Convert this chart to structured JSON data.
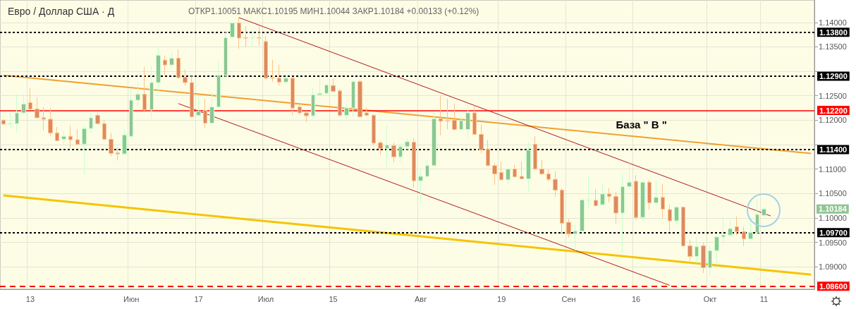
{
  "chart_data": {
    "type": "candlestick",
    "title": "Евро / Доллар США · Д",
    "subtitle": "ОТКР1.10051 МАКС1.10195 МИН1.10044 ЗАКР1.10184 +0.00133 (+0.12%)",
    "categories": [
      null,
      null,
      null,
      null,
      "13",
      null,
      null,
      null,
      null,
      null,
      null,
      null,
      null,
      null,
      null,
      null,
      null,
      null,
      null,
      "Июн",
      null,
      null,
      null,
      null,
      null,
      null,
      null,
      null,
      null,
      "17",
      null,
      null,
      null,
      null,
      null,
      null,
      null,
      null,
      null,
      "Июл",
      null,
      null,
      null,
      null,
      null,
      null,
      null,
      null,
      null,
      "15",
      null,
      null,
      null,
      null,
      null,
      null,
      null,
      null,
      null,
      null,
      null,
      null,
      "Авг",
      null,
      null,
      null,
      null,
      null,
      null,
      null,
      null,
      null,
      null,
      null,
      "19",
      null,
      null,
      null,
      null,
      null,
      null,
      null,
      null,
      null,
      "Сен",
      null,
      null,
      null,
      null,
      null,
      null,
      null,
      null,
      null,
      "16",
      null,
      null,
      null,
      null,
      null,
      null,
      null,
      null,
      null,
      null,
      "Окт",
      null,
      null,
      null,
      null,
      null,
      null,
      null,
      "11",
      null,
      null,
      null,
      null,
      null,
      null,
      null
    ],
    "colors": [
      "#dc8a62",
      "#8fc493",
      "#8fc493",
      "#8fc493",
      "#dc8a62",
      "#dc8a62",
      "#dc8a62",
      "#dc8a62",
      "#dc8a62",
      "#8fc493",
      "#dc8a62",
      "#dc8a62",
      "#8fc493",
      "#8fc493",
      "#dc8a62",
      "#dc8a62",
      "#dc8a62",
      "#dc8a62",
      "#8fc493",
      "#8fc493",
      "#8fc493",
      "#dc8a62",
      "#8fc493",
      "#8fc493",
      "#dc8a62",
      "#8fc493",
      "#dc8a62",
      "#dc8a62",
      "#dc8a62",
      "#8fc493",
      "#dc8a62",
      "#8fc493",
      "#8fc493",
      "#8fc493",
      "#8fc493",
      "#dc8a62",
      "#dc8a62",
      "#8fc493",
      "#dc8a62",
      "#dc8a62",
      "#dc8a62",
      "#dc8a62",
      "#8fc493",
      "#dc8a62",
      "#dc8a62",
      "#dc8a62",
      "#8fc493",
      "#8fc493",
      "#8fc493",
      "#dc8a62",
      "#dc8a62",
      "#8fc493",
      "#8fc493",
      "#dc8a62",
      "#dc8a62",
      "#dc8a62",
      "#dc8a62",
      "#8fc493",
      "#dc8a62",
      "#8fc493",
      "#8fc493",
      "#dc8a62",
      "#8fc493",
      "#8fc493",
      "#8fc493",
      "#dc8a62",
      "#dc8a62",
      "#dc8a62",
      "#8fc493",
      "#8fc493",
      "#dc8a62",
      "#dc8a62",
      "#dc8a62",
      "#dc8a62",
      "#dc8a62",
      "#8fc493",
      "#dc8a62",
      "#dc8a62",
      "#8fc493",
      "#dc8a62",
      "#dc8a62",
      "#dc8a62",
      "#dc8a62",
      "#dc8a62",
      "#dc8a62",
      "#8fc493",
      "#8fc493",
      "#8fc493",
      "#dc8a62",
      "#8fc493",
      "#dc8a62",
      "#dc8a62",
      "#8fc493",
      "#8fc493",
      "#dc8a62",
      "#8fc493",
      "#dc8a62",
      "#8fc493",
      "#dc8a62",
      "#dc8a62",
      "#8fc493",
      "#dc8a62",
      "#dc8a62",
      "#8fc493",
      "#dc8a62",
      "#8fc493",
      "#8fc493",
      "#8fc493",
      "#8fc493",
      "#dc8a62",
      "#dc8a62",
      "#8fc493",
      "#8fc493",
      "#8fc493",
      null,
      null,
      null,
      null,
      null,
      null,
      null
    ],
    "ohlc": [
      [
        1.12,
        1.1202,
        1.119,
        1.1192
      ],
      [
        1.1192,
        1.1215,
        1.1185,
        1.1193
      ],
      [
        1.1193,
        1.1253,
        1.1175,
        1.1215
      ],
      [
        1.1215,
        1.1256,
        1.1212,
        1.1233
      ],
      [
        1.1236,
        1.1266,
        1.1221,
        1.1223
      ],
      [
        1.1223,
        1.1246,
        1.1203,
        1.1205
      ],
      [
        1.1205,
        1.1227,
        1.1179,
        1.1202
      ],
      [
        1.1202,
        1.1225,
        1.1168,
        1.1174
      ],
      [
        1.1174,
        1.1186,
        1.1157,
        1.1158
      ],
      [
        1.1161,
        1.1177,
        1.1151,
        1.1167
      ],
      [
        1.1167,
        1.1189,
        1.1143,
        1.116
      ],
      [
        1.116,
        1.1182,
        1.115,
        1.1151
      ],
      [
        1.1151,
        1.1189,
        1.1089,
        1.1183
      ],
      [
        1.1183,
        1.1214,
        1.1174,
        1.1205
      ],
      [
        1.121,
        1.1216,
        1.1191,
        1.1193
      ],
      [
        1.1193,
        1.1201,
        1.1159,
        1.1161
      ],
      [
        1.1161,
        1.1174,
        1.1126,
        1.1132
      ],
      [
        1.1133,
        1.1144,
        1.1118,
        1.1131
      ],
      [
        1.1131,
        1.1181,
        1.1129,
        1.117
      ],
      [
        1.1167,
        1.1263,
        1.1162,
        1.1241
      ],
      [
        1.1241,
        1.1279,
        1.1229,
        1.1253
      ],
      [
        1.1253,
        1.1309,
        1.1219,
        1.1221
      ],
      [
        1.1221,
        1.1311,
        1.1203,
        1.1277
      ],
      [
        1.1277,
        1.135,
        1.1254,
        1.1333
      ],
      [
        1.1323,
        1.1332,
        1.1293,
        1.1313
      ],
      [
        1.1313,
        1.1339,
        1.1304,
        1.1327
      ],
      [
        1.1327,
        1.1345,
        1.1285,
        1.1287
      ],
      [
        1.1288,
        1.1304,
        1.1271,
        1.1277
      ],
      [
        1.1277,
        1.1291,
        1.1205,
        1.1207
      ],
      [
        1.121,
        1.1249,
        1.1206,
        1.1218
      ],
      [
        1.122,
        1.1244,
        1.1184,
        1.1194
      ],
      [
        1.1194,
        1.1256,
        1.1191,
        1.1227
      ],
      [
        1.1227,
        1.1319,
        1.1225,
        1.1292
      ],
      [
        1.1292,
        1.1381,
        1.1285,
        1.1369
      ],
      [
        1.137,
        1.14,
        1.1368,
        1.1399
      ],
      [
        1.1399,
        1.141,
        1.1346,
        1.1368
      ],
      [
        1.1369,
        1.1393,
        1.135,
        1.1368
      ],
      [
        1.1368,
        1.1384,
        1.135,
        1.1369
      ],
      [
        1.1369,
        1.1393,
        1.1352,
        1.1368
      ],
      [
        1.1361,
        1.1372,
        1.1284,
        1.1286
      ],
      [
        1.1287,
        1.1324,
        1.1278,
        1.1286
      ],
      [
        1.1286,
        1.1314,
        1.1271,
        1.1278
      ],
      [
        1.1278,
        1.1293,
        1.1275,
        1.1286
      ],
      [
        1.1286,
        1.1288,
        1.121,
        1.1225
      ],
      [
        1.1227,
        1.1234,
        1.121,
        1.1215
      ],
      [
        1.1215,
        1.1219,
        1.1196,
        1.1209
      ],
      [
        1.1209,
        1.1266,
        1.1204,
        1.1252
      ],
      [
        1.1252,
        1.1287,
        1.1251,
        1.1255
      ],
      [
        1.1255,
        1.1275,
        1.1251,
        1.1272
      ],
      [
        1.1271,
        1.1285,
        1.1257,
        1.1259
      ],
      [
        1.126,
        1.1264,
        1.1208,
        1.121
      ],
      [
        1.121,
        1.1235,
        1.1202,
        1.1225
      ],
      [
        1.1225,
        1.1283,
        1.1207,
        1.1279
      ],
      [
        1.1279,
        1.1283,
        1.1206,
        1.1207
      ],
      [
        1.1215,
        1.1226,
        1.1209,
        1.121
      ],
      [
        1.121,
        1.1212,
        1.1148,
        1.1153
      ],
      [
        1.1154,
        1.1157,
        1.1129,
        1.1142
      ],
      [
        1.1142,
        1.1189,
        1.1103,
        1.1149
      ],
      [
        1.1148,
        1.1154,
        1.1114,
        1.1125
      ],
      [
        1.1125,
        1.1154,
        1.1114,
        1.1146
      ],
      [
        1.1146,
        1.1163,
        1.1139,
        1.1156
      ],
      [
        1.1155,
        1.1163,
        1.1062,
        1.1076
      ],
      [
        1.1076,
        1.1098,
        1.103,
        1.1085
      ],
      [
        1.1085,
        1.1119,
        1.1084,
        1.1107
      ],
      [
        1.1107,
        1.1215,
        1.1105,
        1.1203
      ],
      [
        1.1203,
        1.1251,
        1.1169,
        1.1198
      ],
      [
        1.1199,
        1.1244,
        1.1181,
        1.1198
      ],
      [
        1.12,
        1.1234,
        1.1179,
        1.1181
      ],
      [
        1.1181,
        1.1206,
        1.118,
        1.1199
      ],
      [
        1.1181,
        1.1232,
        1.1165,
        1.1215
      ],
      [
        1.1215,
        1.123,
        1.117,
        1.1171
      ],
      [
        1.1171,
        1.1191,
        1.1133,
        1.1139
      ],
      [
        1.1141,
        1.116,
        1.1106,
        1.1107
      ],
      [
        1.1107,
        1.1112,
        1.1068,
        1.109
      ],
      [
        1.1093,
        1.1115,
        1.1078,
        1.1078
      ],
      [
        1.1078,
        1.1104,
        1.1068,
        1.11
      ],
      [
        1.11,
        1.1109,
        1.1083,
        1.1084
      ],
      [
        1.1085,
        1.1115,
        1.1079,
        1.108
      ],
      [
        1.108,
        1.1155,
        1.1054,
        1.1139
      ],
      [
        1.1151,
        1.1167,
        1.1097,
        1.11
      ],
      [
        1.11,
        1.1119,
        1.1088,
        1.109
      ],
      [
        1.109,
        1.11,
        1.1075,
        1.1079
      ],
      [
        1.1079,
        1.1096,
        1.1043,
        1.1057
      ],
      [
        1.1057,
        1.1061,
        1.0966,
        1.0989
      ],
      [
        1.0991,
        1.0998,
        1.096,
        1.0967
      ],
      [
        1.0967,
        1.0986,
        1.0933,
        1.0973
      ],
      [
        1.0973,
        1.104,
        1.0972,
        1.1037
      ],
      [
        1.1036,
        1.1085,
        1.1019,
        1.1037
      ],
      [
        1.1036,
        1.1059,
        1.1023,
        1.1025
      ],
      [
        1.1027,
        1.107,
        1.1026,
        1.1049
      ],
      [
        1.1049,
        1.1061,
        1.1032,
        1.1044
      ],
      [
        1.1044,
        1.1053,
        1.0988,
        1.101
      ],
      [
        1.101,
        1.109,
        1.093,
        1.1064
      ],
      [
        1.1064,
        1.1112,
        1.1058,
        1.1073
      ],
      [
        1.1075,
        1.1088,
        1.0996,
        1.1001
      ],
      [
        1.1001,
        1.1076,
        1.0993,
        1.1073
      ],
      [
        1.1073,
        1.1078,
        1.1017,
        1.1031
      ],
      [
        1.1031,
        1.1076,
        1.1025,
        1.1042
      ],
      [
        1.1042,
        1.107,
        1.0999,
        1.1018
      ],
      [
        1.1017,
        1.1027,
        1.0972,
        1.0994
      ],
      [
        1.0994,
        1.1025,
        1.0986,
        1.1022
      ],
      [
        1.1022,
        1.1023,
        1.094,
        1.0943
      ],
      [
        1.0943,
        1.0955,
        1.0912,
        1.0921
      ],
      [
        1.0921,
        1.0961,
        1.0908,
        1.0941
      ],
      [
        1.0943,
        1.0949,
        1.0887,
        1.0898
      ],
      [
        1.0898,
        1.0943,
        1.0882,
        1.0933
      ],
      [
        1.0933,
        1.0965,
        1.0907,
        1.0961
      ],
      [
        1.0961,
        1.1002,
        1.0943,
        1.0965
      ],
      [
        1.0965,
        1.0998,
        1.0961,
        1.0978
      ],
      [
        1.0982,
        1.1003,
        1.0965,
        1.0972
      ],
      [
        1.0972,
        1.0982,
        1.0943,
        1.0957
      ],
      [
        1.0957,
        1.0996,
        1.0951,
        1.097
      ],
      [
        1.097,
        1.1037,
        1.0969,
        1.1007
      ],
      [
        1.10051,
        1.10195,
        1.10044,
        1.10184
      ],
      null,
      null,
      null,
      null,
      null,
      null,
      null
    ],
    "series": [
      {
        "type": "line",
        "color": "#f0a030",
        "values": [
          1.1292,
          null,
          null,
          null,
          null,
          null,
          null,
          null,
          null,
          null,
          null,
          null,
          null,
          null,
          null,
          null,
          null,
          null,
          null,
          null,
          null,
          null,
          null,
          null,
          null,
          null,
          null,
          null,
          null,
          null,
          null,
          null,
          null,
          null,
          null,
          null,
          null,
          null,
          null,
          null,
          null,
          null,
          null,
          null,
          null,
          null,
          null,
          null,
          null,
          null,
          null,
          null,
          null,
          null,
          null,
          null,
          null,
          null,
          null,
          null,
          null,
          null,
          null,
          null,
          null,
          null,
          null,
          null,
          null,
          null,
          null,
          null,
          null,
          null,
          null,
          null,
          null,
          null,
          null,
          null,
          null,
          null,
          null,
          null,
          null,
          null,
          null,
          null,
          null,
          null,
          null,
          null,
          null,
          null,
          null,
          null,
          null,
          null,
          null,
          null,
          null,
          null,
          null,
          null,
          null,
          null,
          null,
          null,
          null,
          null,
          null,
          null,
          null,
          null,
          null,
          null,
          null,
          null,
          null,
          null,
          1.1132
        ]
      },
      {
        "type": "line",
        "color": "#f5c400",
        "values": [
          1.1046,
          null,
          null,
          null,
          null,
          null,
          null,
          null,
          null,
          null,
          null,
          null,
          null,
          null,
          null,
          null,
          null,
          null,
          null,
          null,
          null,
          null,
          null,
          null,
          null,
          null,
          null,
          null,
          null,
          null,
          null,
          null,
          null,
          null,
          null,
          null,
          null,
          null,
          null,
          null,
          null,
          null,
          null,
          null,
          null,
          null,
          null,
          null,
          null,
          null,
          null,
          null,
          null,
          null,
          null,
          null,
          null,
          null,
          null,
          null,
          null,
          null,
          null,
          null,
          null,
          null,
          null,
          null,
          null,
          null,
          null,
          null,
          null,
          null,
          null,
          null,
          null,
          null,
          null,
          null,
          null,
          null,
          null,
          null,
          null,
          null,
          null,
          null,
          null,
          null,
          null,
          null,
          null,
          null,
          null,
          null,
          null,
          null,
          null,
          null,
          null,
          null,
          null,
          null,
          null,
          null,
          null,
          null,
          null,
          null,
          null,
          null,
          null,
          null,
          null,
          null,
          null,
          null,
          null,
          null,
          1.0884
        ]
      },
      {
        "type": "line",
        "color": "#b01818",
        "values": [
          null,
          null,
          null,
          null,
          null,
          null,
          null,
          null,
          null,
          null,
          null,
          null,
          null,
          null,
          null,
          null,
          null,
          null,
          null,
          null,
          null,
          null,
          null,
          null,
          null,
          null,
          null,
          null,
          null,
          null,
          null,
          null,
          null,
          null,
          null,
          1.141,
          null,
          null,
          null,
          null,
          null,
          null,
          null,
          null,
          null,
          null,
          null,
          null,
          null,
          null,
          null,
          null,
          null,
          null,
          null,
          null,
          null,
          null,
          null,
          null,
          null,
          null,
          null,
          null,
          null,
          null,
          null,
          null,
          null,
          null,
          null,
          null,
          null,
          null,
          null,
          null,
          null,
          null,
          null,
          null,
          null,
          null,
          null,
          null,
          null,
          null,
          null,
          null,
          null,
          null,
          null,
          null,
          null,
          null,
          null,
          null,
          null,
          null,
          null,
          null,
          null,
          null,
          null,
          null,
          null,
          null,
          null,
          null,
          null,
          null,
          null,
          null,
          null,
          null,
          1.1004,
          null,
          null,
          null,
          null,
          null,
          null
        ]
      },
      {
        "type": "line",
        "color": "#b01818",
        "values": [
          null,
          null,
          null,
          null,
          null,
          null,
          null,
          null,
          null,
          null,
          null,
          null,
          null,
          null,
          null,
          null,
          null,
          null,
          null,
          null,
          null,
          null,
          null,
          null,
          null,
          null,
          1.1234,
          null,
          null,
          null,
          null,
          null,
          null,
          null,
          null,
          null,
          null,
          null,
          null,
          null,
          null,
          null,
          null,
          null,
          null,
          null,
          null,
          null,
          null,
          null,
          null,
          null,
          null,
          null,
          null,
          null,
          null,
          null,
          null,
          null,
          null,
          null,
          null,
          null,
          null,
          null,
          null,
          null,
          null,
          null,
          null,
          null,
          null,
          null,
          null,
          null,
          null,
          null,
          null,
          null,
          null,
          null,
          null,
          null,
          null,
          null,
          null,
          null,
          null,
          null,
          null,
          null,
          null,
          null,
          null,
          null,
          null,
          null,
          null,
          1.0862,
          null,
          null,
          null,
          null,
          null,
          null,
          null,
          null,
          null,
          null,
          null,
          null,
          null,
          null,
          null,
          null,
          null,
          null,
          null,
          null,
          null
        ]
      }
    ],
    "ylim": [
      1.0854,
      1.1446
    ],
    "yticks": [
      {
        "value": 1.09,
        "label": "1.09000"
      },
      {
        "value": 1.095,
        "label": "1.09500"
      },
      {
        "value": 1.1,
        "label": "1.10000"
      },
      {
        "value": 1.105,
        "label": "1.10500"
      },
      {
        "value": 1.11,
        "label": "1.11000"
      },
      {
        "value": 1.115,
        "label": null
      },
      {
        "value": 1.12,
        "label": "1.12000"
      },
      {
        "value": 1.125,
        "label": "1.12500"
      },
      {
        "value": 1.13,
        "label": null
      },
      {
        "value": 1.135,
        "label": "1.13500"
      },
      {
        "value": 1.14,
        "label": "1.14000"
      }
    ],
    "ref_lines": [
      {
        "axis": "y",
        "value": 1.138,
        "label": "1.13800",
        "color": "#000000",
        "line_style": "dotted"
      },
      {
        "axis": "y",
        "value": 1.129,
        "label": "1.12900",
        "color": "#000000",
        "line_style": "dotted"
      },
      {
        "axis": "y",
        "value": 1.122,
        "label": "1.12200",
        "color": "#ff0000",
        "line_style": "solid"
      },
      {
        "axis": "y",
        "value": 1.114,
        "label": "1.11400",
        "color": "#000000",
        "line_style": "dotted"
      },
      {
        "axis": "y",
        "value": 1.097,
        "label": "1.09700",
        "color": "#000000",
        "line_style": "dotted"
      },
      {
        "axis": "y",
        "value": 1.086,
        "label": "1.08600",
        "color": "#ff0000",
        "line_style": "dashed"
      }
    ],
    "annotations": [
      "База \" В \"",
      "1.10184"
    ],
    "grid": true
  }
}
